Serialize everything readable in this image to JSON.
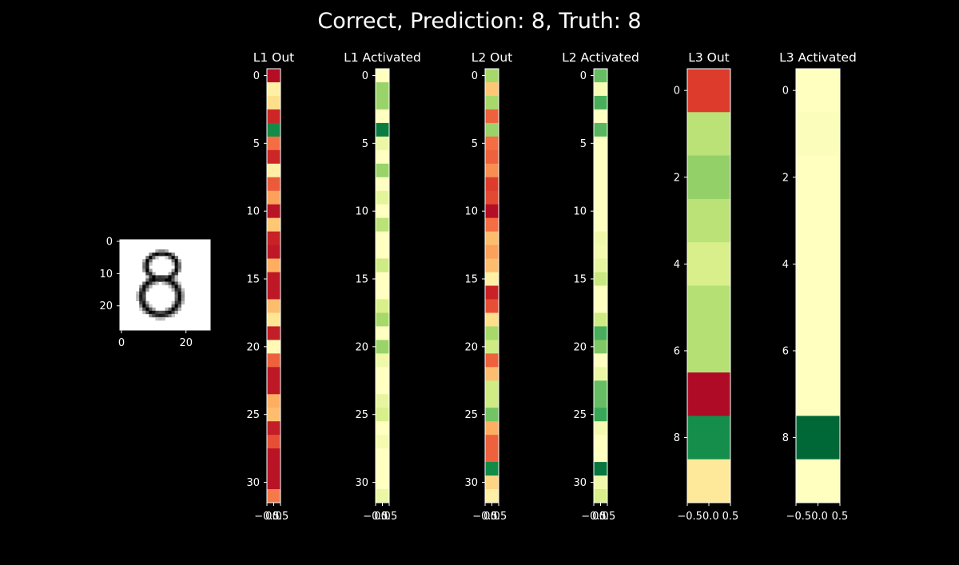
{
  "figure": {
    "suptitle": "Correct, Prediction: 8, Truth: 8",
    "suptitle_color": "#1a7f1a",
    "background": "#000000",
    "colormap": "RdYlGn",
    "input_colormap": "gray_r"
  },
  "chart_data": [
    {
      "type": "heatmap",
      "name": "input-image",
      "title": "",
      "description": "28x28 input digit (handwritten 8)",
      "xticks": [
        "0",
        "20"
      ],
      "yticks": [
        "0",
        "10",
        "20"
      ],
      "shape": [
        28,
        28
      ]
    },
    {
      "type": "heatmap",
      "title": "L1 Out",
      "xticks": [
        "−0.5",
        "0.0",
        "0.5"
      ],
      "yticks": [
        "0",
        "5",
        "10",
        "15",
        "20",
        "25",
        "30"
      ],
      "values": [
        0.03,
        0.45,
        0.4,
        0.08,
        0.93,
        0.2,
        0.08,
        0.45,
        0.17,
        0.28,
        0.04,
        0.35,
        0.07,
        0.05,
        0.3,
        0.05,
        0.05,
        0.33,
        0.42,
        0.06,
        0.48,
        0.18,
        0.05,
        0.05,
        0.3,
        0.33,
        0.06,
        0.15,
        0.04,
        0.04,
        0.04,
        0.22
      ]
    },
    {
      "type": "heatmap",
      "title": "L1 Activated",
      "xticks": [
        "−0.5",
        "0.0",
        "0.5"
      ],
      "yticks": [
        "0",
        "5",
        "10",
        "15",
        "20",
        "25",
        "30"
      ],
      "values": [
        0.5,
        0.72,
        0.72,
        0.5,
        0.96,
        0.55,
        0.5,
        0.72,
        0.5,
        0.57,
        0.5,
        0.66,
        0.5,
        0.5,
        0.62,
        0.5,
        0.5,
        0.6,
        0.7,
        0.5,
        0.72,
        0.54,
        0.5,
        0.5,
        0.56,
        0.6,
        0.5,
        0.53,
        0.5,
        0.5,
        0.5,
        0.55
      ]
    },
    {
      "type": "heatmap",
      "title": "L2 Out",
      "xticks": [
        "−0.5",
        "0.0",
        "0.5"
      ],
      "yticks": [
        "0",
        "5",
        "10",
        "15",
        "20",
        "25",
        "30"
      ],
      "values": [
        0.7,
        0.35,
        0.7,
        0.18,
        0.72,
        0.2,
        0.18,
        0.25,
        0.12,
        0.14,
        0.03,
        0.2,
        0.33,
        0.28,
        0.33,
        0.45,
        0.07,
        0.15,
        0.4,
        0.7,
        0.62,
        0.18,
        0.33,
        0.62,
        0.62,
        0.78,
        0.3,
        0.18,
        0.18,
        0.93,
        0.38,
        0.45
      ]
    },
    {
      "type": "heatmap",
      "title": "L2 Activated",
      "xticks": [
        "−0.5",
        "0.0",
        "0.5"
      ],
      "yticks": [
        "0",
        "5",
        "10",
        "15",
        "20",
        "25",
        "30"
      ],
      "values": [
        0.8,
        0.52,
        0.84,
        0.5,
        0.82,
        0.5,
        0.5,
        0.5,
        0.5,
        0.5,
        0.5,
        0.5,
        0.54,
        0.53,
        0.56,
        0.63,
        0.5,
        0.5,
        0.62,
        0.84,
        0.76,
        0.5,
        0.55,
        0.8,
        0.8,
        0.86,
        0.53,
        0.5,
        0.5,
        0.97,
        0.54,
        0.6
      ]
    },
    {
      "type": "heatmap",
      "title": "L3 Out",
      "xticks": [
        "−0.50.0",
        "0.5"
      ],
      "yticks": [
        "0",
        "2",
        "4",
        "6",
        "8"
      ],
      "values": [
        0.12,
        0.66,
        0.73,
        0.66,
        0.6,
        0.67,
        0.67,
        0.02,
        0.92,
        0.43
      ]
    },
    {
      "type": "heatmap",
      "title": "L3 Activated",
      "xticks": [
        "−0.50.0",
        "0.5"
      ],
      "yticks": [
        "0",
        "2",
        "4",
        "6",
        "8"
      ],
      "values": [
        0.5,
        0.51,
        0.5,
        0.5,
        0.5,
        0.5,
        0.5,
        0.5,
        1.0,
        0.5
      ]
    }
  ]
}
